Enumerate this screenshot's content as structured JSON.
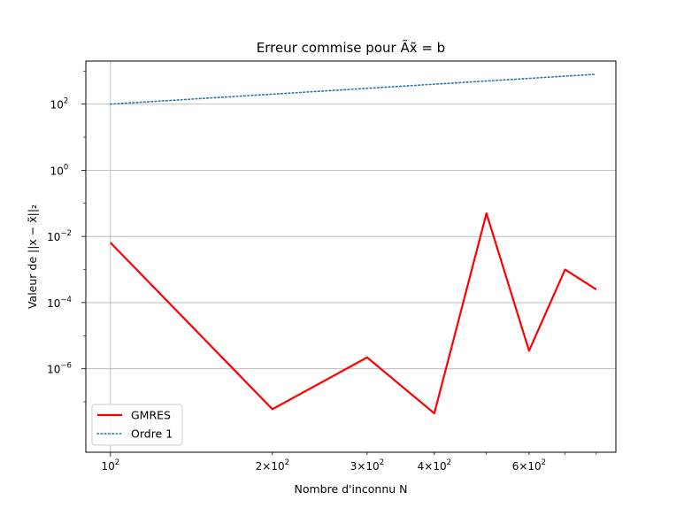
{
  "chart_data": {
    "type": "line",
    "title": "Erreur commise pour Ãx̃ = b",
    "xlabel": "Nombre d'inconnu N",
    "ylabel": "Valeur de ||x − x̃||₂",
    "xscale": "log",
    "yscale": "log",
    "xlim": [
      90,
      870
    ],
    "ylim": [
      3e-09,
      2000.0
    ],
    "grid": true,
    "legend_position": "lower-left",
    "x_ticks": [
      {
        "value": 100,
        "mantissa": "",
        "base": "10",
        "exp": "2"
      },
      {
        "value": 200,
        "mantissa": "2×",
        "base": "10",
        "exp": "2"
      },
      {
        "value": 300,
        "mantissa": "3×",
        "base": "10",
        "exp": "2"
      },
      {
        "value": 400,
        "mantissa": "4×",
        "base": "10",
        "exp": "2"
      },
      {
        "value": 600,
        "mantissa": "6×",
        "base": "10",
        "exp": "2"
      }
    ],
    "y_ticks": [
      {
        "value": 1e-06,
        "base": "10",
        "exp": "−6"
      },
      {
        "value": 0.0001,
        "base": "10",
        "exp": "−4"
      },
      {
        "value": 0.01,
        "base": "10",
        "exp": "−2"
      },
      {
        "value": 1,
        "base": "10",
        "exp": "0"
      },
      {
        "value": 100,
        "base": "10",
        "exp": "2"
      }
    ],
    "series": [
      {
        "name": "GMRES",
        "color": "#ff0000",
        "style": "solid",
        "x": [
          100,
          200,
          300,
          400,
          500,
          600,
          700,
          800
        ],
        "y": [
          0.0065,
          6e-08,
          2.2e-06,
          4.5e-08,
          0.05,
          3.5e-06,
          0.001,
          0.00025
        ]
      },
      {
        "name": "Ordre 1",
        "color": "#1f77b4",
        "style": "dotted",
        "x": [
          100,
          200,
          300,
          400,
          500,
          600,
          700,
          800
        ],
        "y": [
          100,
          200,
          300,
          400,
          500,
          600,
          700,
          800
        ]
      }
    ]
  }
}
